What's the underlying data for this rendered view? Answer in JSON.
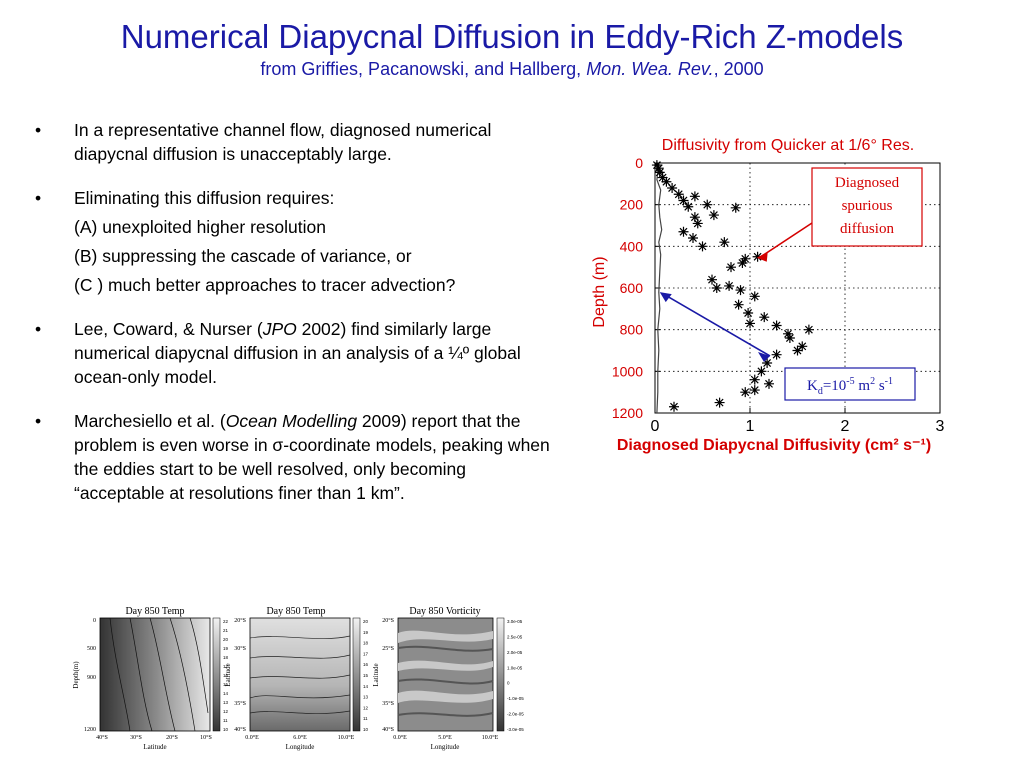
{
  "slide": {
    "title": "Numerical Diapycnal Diffusion in Eddy-Rich Z-models",
    "subtitle_plain": "from Griffies, Pacanowski, and Hallberg, ",
    "subtitle_journal": "Mon. Wea. Rev.",
    "subtitle_year": ", 2000"
  },
  "bullets": [
    {
      "text": "In a representative channel flow, diagnosed numerical diapycnal diffusion is unacceptably large."
    },
    {
      "text": "Eliminating this diffusion requires:",
      "subitems": [
        "(A) unexploited higher resolution",
        "(B) suppressing the cascade of variance, or",
        "(C ) much better approaches to tracer advection?"
      ]
    },
    {
      "pre": "Lee, Coward, & Nurser (",
      "italic": "JPO",
      "post": " 2002) find similarly large numerical diapycnal diffusion in an analysis of a ¼º global ocean-only model."
    },
    {
      "pre": "Marchesiello et al. (",
      "italic": "Ocean Modelling",
      "post": " 2009) report that the problem is even worse in σ-coordinate models, peaking when the eddies start to be well resolved, only becoming “acceptable at resolutions finer than 1 km”."
    }
  ],
  "chart_data": {
    "type": "scatter",
    "title": "Diffusivity from Quicker at 1/6° Res.",
    "xlabel": "Diagnosed Diapycnal Diffusivity (cm² s⁻¹)",
    "ylabel": "Depth (m)",
    "xlim": [
      0,
      3
    ],
    "ylim": [
      0,
      1200
    ],
    "y_inverted": true,
    "xticks": [
      "0",
      "1",
      "2",
      "3"
    ],
    "yticks": [
      "0",
      "200",
      "400",
      "600",
      "800",
      "1000",
      "1200"
    ],
    "grid": "dotted",
    "series": [
      {
        "marker": "asterisk",
        "points": [
          [
            0.02,
            10
          ],
          [
            0.04,
            25
          ],
          [
            0.05,
            45
          ],
          [
            0.08,
            70
          ],
          [
            0.12,
            90
          ],
          [
            0.18,
            120
          ],
          [
            0.25,
            150
          ],
          [
            0.3,
            180
          ],
          [
            0.42,
            160
          ],
          [
            0.35,
            210
          ],
          [
            0.55,
            200
          ],
          [
            0.42,
            260
          ],
          [
            0.45,
            290
          ],
          [
            0.3,
            330
          ],
          [
            0.62,
            250
          ],
          [
            0.85,
            215
          ],
          [
            0.4,
            360
          ],
          [
            0.5,
            400
          ],
          [
            0.73,
            380
          ],
          [
            0.95,
            460
          ],
          [
            1.08,
            450
          ],
          [
            0.92,
            480
          ],
          [
            0.8,
            500
          ],
          [
            0.6,
            560
          ],
          [
            0.65,
            600
          ],
          [
            0.78,
            590
          ],
          [
            0.9,
            610
          ],
          [
            0.88,
            680
          ],
          [
            0.98,
            720
          ],
          [
            1.05,
            640
          ],
          [
            1.0,
            770
          ],
          [
            1.15,
            740
          ],
          [
            1.28,
            780
          ],
          [
            1.4,
            820
          ],
          [
            1.62,
            800
          ],
          [
            1.55,
            880
          ],
          [
            1.5,
            900
          ],
          [
            1.42,
            840
          ],
          [
            1.28,
            920
          ],
          [
            1.18,
            960
          ],
          [
            1.12,
            1000
          ],
          [
            1.05,
            1040
          ],
          [
            1.2,
            1060
          ],
          [
            1.05,
            1090
          ],
          [
            0.95,
            1100
          ],
          [
            0.68,
            1150
          ],
          [
            0.2,
            1170
          ]
        ]
      },
      {
        "style": "line",
        "points": [
          [
            0.02,
            0
          ],
          [
            0.03,
            40
          ],
          [
            0.02,
            80
          ],
          [
            0.06,
            130
          ],
          [
            0.04,
            200
          ],
          [
            0.05,
            260
          ],
          [
            0.07,
            320
          ],
          [
            0.04,
            380
          ],
          [
            0.06,
            440
          ],
          [
            0.05,
            520
          ],
          [
            0.04,
            620
          ],
          [
            0.05,
            700
          ],
          [
            0.03,
            800
          ],
          [
            0.04,
            900
          ],
          [
            0.03,
            1000
          ],
          [
            0.03,
            1100
          ],
          [
            0.02,
            1200
          ]
        ]
      }
    ],
    "annotations": [
      {
        "lines": [
          "Diagnosed",
          "spurious",
          "diffusion"
        ],
        "color": "#d40000",
        "target": [
          1.05,
          450
        ]
      },
      {
        "label_pre": "K",
        "label_sub": "d",
        "label_mid": "=10",
        "label_sup": "-5",
        "label_unit": " m",
        "label_unit_sup": "2",
        "label_s": " s",
        "label_s_sup": "-1",
        "color": "#1a1aa6",
        "target": [
          0.05,
          620
        ]
      }
    ]
  },
  "thumbnails": [
    {
      "title": "Day 850 Temp",
      "ylabel": "Depth(m)",
      "xlabel": "Latitude",
      "yticks": [
        "0",
        "500",
        "900",
        "1200"
      ],
      "xticks": [
        "40°S",
        "30°S",
        "20°S",
        "10°S"
      ],
      "colorbar": [
        "22",
        "21",
        "20",
        "19",
        "18",
        "17",
        "16",
        "15",
        "14",
        "13",
        "12",
        "11",
        "10"
      ]
    },
    {
      "title": "Day 850 Temp",
      "ylabel": "Latitude",
      "xlabel": "Longitude",
      "yticks": [
        "20°S",
        "30°S",
        "35°S",
        "40°S"
      ],
      "xticks": [
        "0.0°E",
        "6.0°E",
        "10.0°E"
      ],
      "colorbar": [
        "20",
        "19",
        "18",
        "17",
        "16",
        "15",
        "14",
        "13",
        "12",
        "11",
        "10"
      ]
    },
    {
      "title": "Day 850 Vorticity",
      "ylabel": "Latitude",
      "xlabel": "Longitude",
      "yticks": [
        "20°S",
        "25°S",
        "35°S",
        "40°S"
      ],
      "xticks": [
        "0.0°E",
        "5.0°E",
        "10.0°E"
      ],
      "colorbar": [
        "3.0e-05",
        "2.5e-05",
        "2.0e-05",
        "1.0e-05",
        "0",
        "-1.0e-05",
        "-2.0e-05",
        "-3.0e-05"
      ]
    }
  ]
}
